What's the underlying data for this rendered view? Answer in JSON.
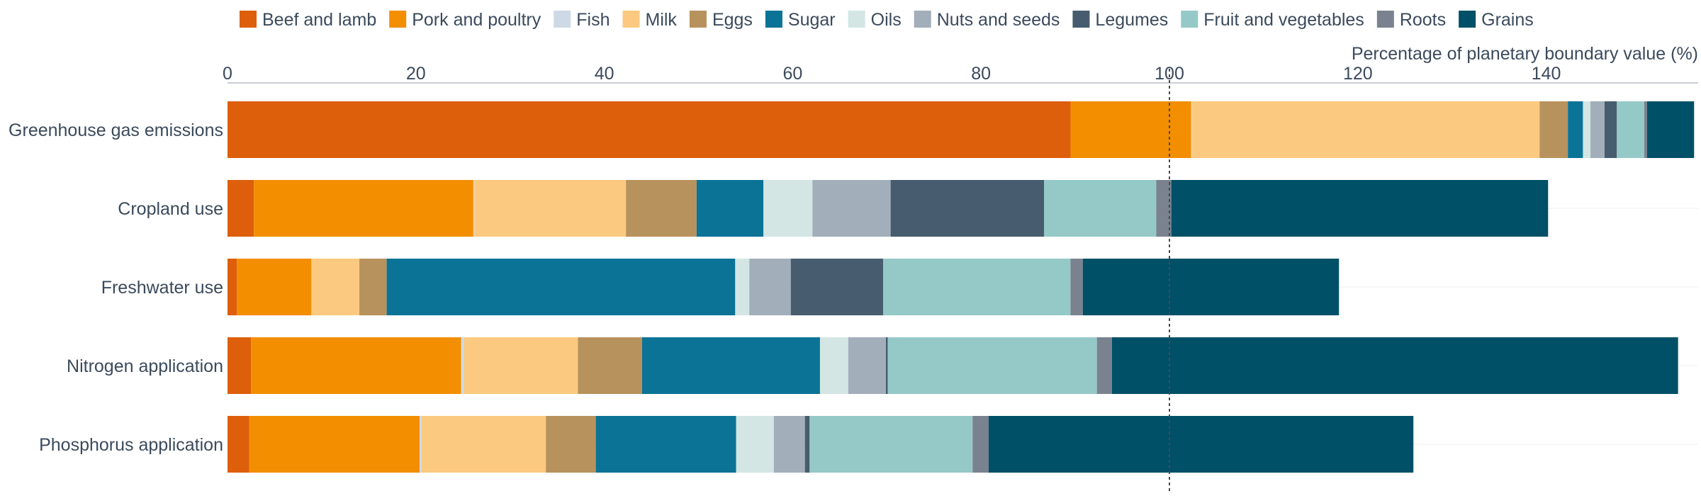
{
  "chart_data": {
    "type": "bar",
    "orientation": "horizontal",
    "stacked": true,
    "title": "",
    "xlabel": "Percentage of planetary boundary value (%)",
    "ylabel": "",
    "xlim": [
      0,
      156
    ],
    "x_ticks": [
      0,
      20,
      40,
      60,
      80,
      100,
      120,
      140
    ],
    "reference_line": {
      "x": 100,
      "style": "dotted"
    },
    "legend_placement": "top",
    "grid": "horizontal light lines",
    "categories": [
      "Greenhouse gas emissions",
      "Cropland use",
      "Freshwater use",
      "Nitrogen application",
      "Phosphorus application"
    ],
    "series": [
      {
        "name": "Beef and lamb",
        "color": "#dd5e0b",
        "values": [
          89.5,
          2.8,
          1.0,
          2.5,
          2.3
        ]
      },
      {
        "name": "Pork and poultry",
        "color": "#f28e00",
        "values": [
          12.8,
          23.3,
          7.9,
          22.3,
          18.1
        ]
      },
      {
        "name": "Fish",
        "color": "#cddae5",
        "values": [
          0.1,
          0.1,
          0.0,
          0.3,
          0.2
        ]
      },
      {
        "name": "Milk",
        "color": "#fbc97f",
        "values": [
          36.9,
          16.1,
          5.1,
          12.1,
          13.2
        ]
      },
      {
        "name": "Eggs",
        "color": "#b8925c",
        "values": [
          3.0,
          7.5,
          2.9,
          6.8,
          5.3
        ]
      },
      {
        "name": "Sugar",
        "color": "#0b7396",
        "values": [
          1.6,
          7.1,
          37.0,
          18.9,
          14.9
        ]
      },
      {
        "name": "Oils",
        "color": "#d3e6e4",
        "values": [
          0.8,
          5.2,
          1.5,
          3.0,
          4.0
        ]
      },
      {
        "name": "Nuts and seeds",
        "color": "#a2aeba",
        "values": [
          1.5,
          8.3,
          4.4,
          4.0,
          3.3
        ]
      },
      {
        "name": "Legumes",
        "color": "#475c6e",
        "values": [
          1.3,
          16.3,
          9.8,
          0.2,
          0.5
        ]
      },
      {
        "name": "Fruit and vegetables",
        "color": "#95c9c8",
        "values": [
          2.9,
          11.9,
          19.9,
          22.2,
          17.3
        ]
      },
      {
        "name": "Roots",
        "color": "#7a828f",
        "values": [
          0.3,
          1.6,
          1.3,
          1.6,
          1.7
        ]
      },
      {
        "name": "Grains",
        "color": "#005068",
        "values": [
          5.0,
          40.0,
          27.2,
          60.1,
          45.1
        ]
      }
    ]
  }
}
